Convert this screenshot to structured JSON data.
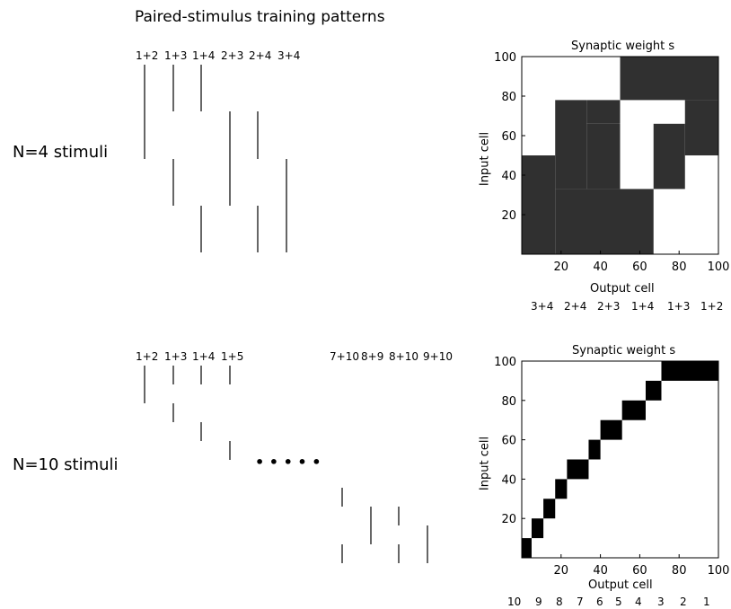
{
  "figure_title": "Paired-stimulus training patterns",
  "top": {
    "condition_label": "N=4 stimuli",
    "pair_labels": [
      "1+2",
      "1+3",
      "1+4",
      "2+3",
      "2+4",
      "3+4"
    ],
    "matrix": {
      "title": "Synaptic weight s",
      "xlabel": "Output cell",
      "ylabel": "Input cell",
      "xticks": [
        "20",
        "40",
        "60",
        "80",
        "100"
      ],
      "yticks": [
        "20",
        "40",
        "60",
        "80",
        "100"
      ],
      "output_pair_labels": [
        "3+4",
        "2+4",
        "2+3",
        "1+4",
        "1+3",
        "1+2"
      ]
    }
  },
  "bottom": {
    "condition_label": "N=10 stimuli",
    "pair_labels_left": [
      "1+2",
      "1+3",
      "1+4",
      "1+5"
    ],
    "ellipsis": "• • • • •",
    "pair_labels_right": [
      "7+10",
      "8+9",
      "8+10",
      "9+10"
    ],
    "matrix": {
      "title": "Synaptic weight s",
      "xlabel": "Output cell",
      "ylabel": "Input cell",
      "xticks": [
        "20",
        "40",
        "60",
        "80",
        "100"
      ],
      "yticks": [
        "20",
        "40",
        "60",
        "80",
        "100"
      ],
      "output_stim_labels": [
        "10",
        "9",
        "8",
        "7",
        "6",
        "5",
        "4",
        "3",
        "2",
        "1"
      ]
    }
  },
  "chart_data": [
    {
      "type": "heatmap",
      "title": "Synaptic weight s",
      "xlabel": "Output cell",
      "ylabel": "Input cell",
      "xlim": [
        0,
        100
      ],
      "ylim": [
        0,
        100
      ],
      "colors": {
        "strong": "#303030",
        "weak": "#ffffff"
      },
      "dark_blocks": [
        {
          "x": [
            0,
            17
          ],
          "y": [
            0,
            50
          ]
        },
        {
          "x": [
            17,
            50
          ],
          "y": [
            0,
            33
          ]
        },
        {
          "x": [
            17,
            33
          ],
          "y": [
            33,
            78
          ]
        },
        {
          "x": [
            33,
            50
          ],
          "y": [
            33,
            66
          ]
        },
        {
          "x": [
            33,
            50
          ],
          "y": [
            66,
            78
          ]
        },
        {
          "x": [
            50,
            67
          ],
          "y": [
            0,
            33
          ]
        },
        {
          "x": [
            50,
            100
          ],
          "y": [
            78,
            100
          ]
        },
        {
          "x": [
            67,
            83
          ],
          "y": [
            33,
            66
          ]
        },
        {
          "x": [
            83,
            100
          ],
          "y": [
            50,
            78
          ]
        }
      ]
    },
    {
      "type": "heatmap",
      "title": "Synaptic weight s",
      "xlabel": "Output cell",
      "ylabel": "Input cell",
      "xlim": [
        0,
        100
      ],
      "ylim": [
        0,
        100
      ],
      "colors": {
        "strong": "#000000",
        "weak": "#ffffff"
      },
      "dark_blocks": [
        {
          "x": [
            0,
            5
          ],
          "y": [
            0,
            10
          ]
        },
        {
          "x": [
            5,
            11
          ],
          "y": [
            10,
            20
          ]
        },
        {
          "x": [
            11,
            17
          ],
          "y": [
            20,
            30
          ]
        },
        {
          "x": [
            17,
            23
          ],
          "y": [
            30,
            40
          ]
        },
        {
          "x": [
            23,
            34
          ],
          "y": [
            40,
            50
          ]
        },
        {
          "x": [
            34,
            40
          ],
          "y": [
            50,
            60
          ]
        },
        {
          "x": [
            40,
            51
          ],
          "y": [
            60,
            70
          ]
        },
        {
          "x": [
            51,
            63
          ],
          "y": [
            70,
            80
          ]
        },
        {
          "x": [
            63,
            71
          ],
          "y": [
            80,
            90
          ]
        },
        {
          "x": [
            71,
            100
          ],
          "y": [
            90,
            100
          ]
        }
      ]
    }
  ]
}
